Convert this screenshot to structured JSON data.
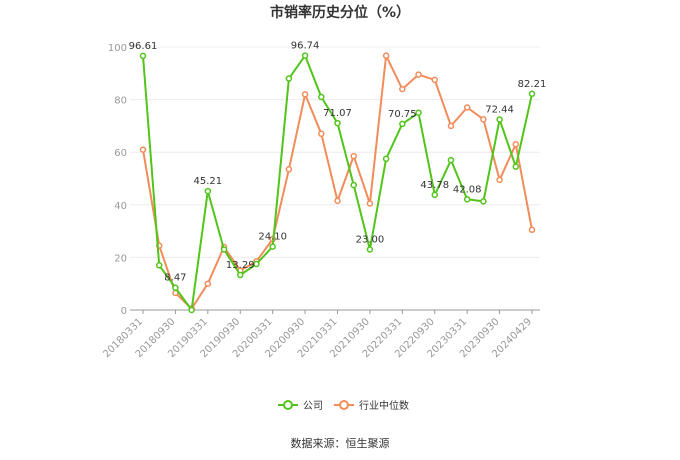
{
  "chart_data": {
    "type": "line",
    "title": "市销率历史分位（%）",
    "x": [
      "20180331",
      "20180630",
      "20180930",
      "20181231",
      "20190331",
      "20190630",
      "20190930",
      "20191231",
      "20200331",
      "20200630",
      "20200930",
      "20201231",
      "20210331",
      "20210630",
      "20210930",
      "20211231",
      "20220331",
      "20220630",
      "20220930",
      "20221231",
      "20230331",
      "20230630",
      "20230930",
      "20231231",
      "20240429"
    ],
    "x_tick_labels": [
      "20180331",
      "20180930",
      "20190331",
      "20190930",
      "20200331",
      "20200930",
      "20210331",
      "20210930",
      "20220331",
      "20220930",
      "20230331",
      "20230930",
      "20240429"
    ],
    "ylim": [
      0,
      100
    ],
    "y_ticks": [
      0,
      20,
      40,
      60,
      80,
      100
    ],
    "grid": true,
    "legend_position": "bottom",
    "colors": {
      "company": "#52c41a",
      "industry": "#f28c5a"
    },
    "series": [
      {
        "name": "公司",
        "values": [
          96.61,
          17,
          8.47,
          0,
          45.21,
          23,
          13.29,
          17.5,
          24.1,
          88,
          96.74,
          81,
          71.07,
          47.5,
          23.0,
          57.5,
          70.75,
          75,
          43.78,
          57,
          42.08,
          41.3,
          72.44,
          54.5,
          82.21
        ],
        "labels": {
          "0": "96.61",
          "2": "8.47",
          "4": "45.21",
          "6": "13.29",
          "8": "24.10",
          "10": "96.74",
          "12": "71.07",
          "14": "23.00",
          "16": "70.75",
          "18": "43.78",
          "20": "42.08",
          "22": "72.44",
          "24": "82.21"
        }
      },
      {
        "name": "行业中位数",
        "values": [
          61,
          24.5,
          6.5,
          0.5,
          10,
          24,
          15,
          18.5,
          27,
          53.5,
          82,
          67,
          41.5,
          58.5,
          40.5,
          96.7,
          84,
          89.5,
          87.5,
          70,
          77,
          72.5,
          49.5,
          63,
          30.5
        ]
      }
    ]
  },
  "source_text": "数据来源：恒生聚源"
}
